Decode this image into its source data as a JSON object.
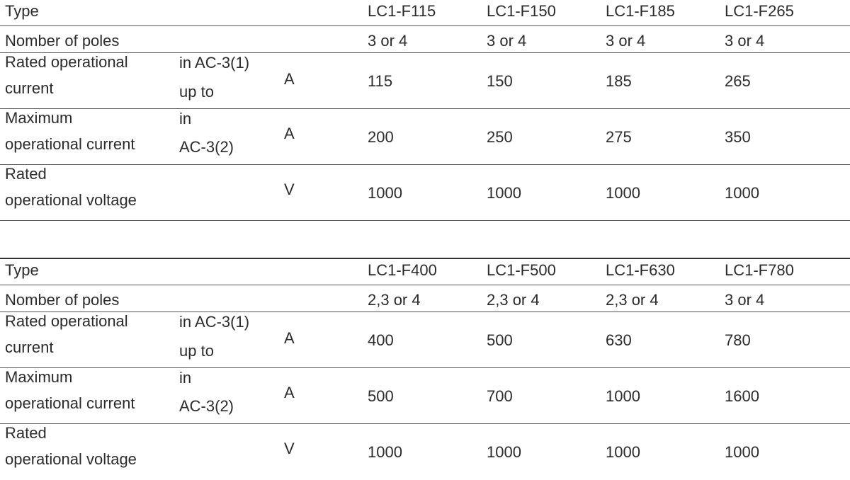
{
  "tables": [
    {
      "type_label": "Type",
      "models": [
        "LC1-F115",
        "LC1-F150",
        "LC1-F185",
        "LC1-F265"
      ],
      "poles_label": "Nomber of poles",
      "poles": [
        "3 or 4",
        "3 or 4",
        "3 or 4",
        "3 or 4"
      ],
      "rated_current": {
        "label_line1": "Rated operational",
        "label_line2": "current",
        "cond_line1": "in AC-3(1)",
        "cond_line2": "up to",
        "unit": "A",
        "values": [
          "115",
          "150",
          "185",
          "265"
        ]
      },
      "max_current": {
        "label_line1": "Maximum",
        "label_line2": "operational current",
        "cond_line1": "in",
        "cond_line2": "AC-3(2)",
        "unit": "A",
        "values": [
          "200",
          "250",
          "275",
          "350"
        ]
      },
      "rated_voltage": {
        "label_line1": "Rated",
        "label_line2": "operational voltage",
        "unit": "V",
        "values": [
          "1000",
          "1000",
          "1000",
          "1000"
        ]
      }
    },
    {
      "type_label": "Type",
      "models": [
        "LC1-F400",
        "LC1-F500",
        "LC1-F630",
        "LC1-F780"
      ],
      "poles_label": "Nomber of poles",
      "poles": [
        "2,3 or 4",
        "2,3 or 4",
        "2,3 or 4",
        "3 or 4"
      ],
      "rated_current": {
        "label_line1": "Rated operational",
        "label_line2": "current",
        "cond_line1": "in AC-3(1)",
        "cond_line2": "up to",
        "unit": "A",
        "values": [
          "400",
          "500",
          "630",
          "780"
        ]
      },
      "max_current": {
        "label_line1": "Maximum",
        "label_line2": "operational current",
        "cond_line1": "in",
        "cond_line2": "AC-3(2)",
        "unit": "A",
        "values": [
          "500",
          "700",
          "1000",
          "1600"
        ]
      },
      "rated_voltage": {
        "label_line1": "Rated",
        "label_line2": "operational voltage",
        "unit": "V",
        "values": [
          "1000",
          "1000",
          "1000",
          "1000"
        ]
      }
    }
  ]
}
